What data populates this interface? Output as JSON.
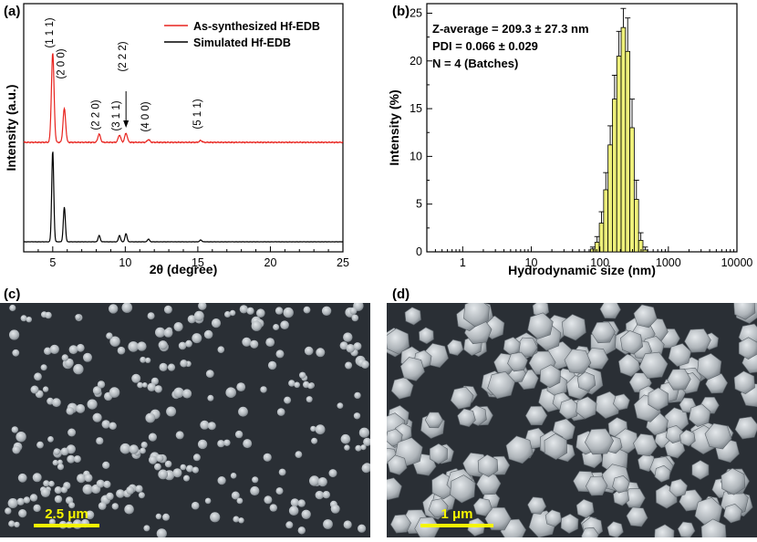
{
  "panels": {
    "a": {
      "label": "(a)"
    },
    "b": {
      "label": "(b)"
    },
    "c": {
      "label": "(c)"
    },
    "d": {
      "label": "(d)"
    }
  },
  "chart_data": [
    {
      "id": "xrd",
      "type": "line",
      "xlabel": "2θ (degree)",
      "ylabel": "Intensity (a.u.)",
      "xlim": [
        3,
        25
      ],
      "x_ticks": [
        5,
        10,
        15,
        20,
        25
      ],
      "legend": [
        {
          "label": "As-synthesized Hf-EDB",
          "color": "#e8231e"
        },
        {
          "label": "Simulated Hf-EDB",
          "color": "#000000"
        }
      ],
      "peaks": [
        {
          "x": 5.0,
          "label": "(1 1 1)",
          "exp": 98,
          "sim": 100
        },
        {
          "x": 5.8,
          "label": "(2 0 0)",
          "exp": 37,
          "sim": 38
        },
        {
          "x": 8.2,
          "label": "(2 2 0)",
          "exp": 9,
          "sim": 7
        },
        {
          "x": 9.6,
          "label": "(3 1 1)",
          "exp": 8,
          "sim": 7
        },
        {
          "x": 10.05,
          "label": "(2 2 2)",
          "exp": 10,
          "sim": 9
        },
        {
          "x": 11.6,
          "label": "(4 0 0)",
          "exp": 3,
          "sim": 3
        },
        {
          "x": 15.2,
          "label": "(5 1 1)",
          "exp": 2,
          "sim": 2
        }
      ]
    },
    {
      "id": "dls",
      "type": "bar",
      "xscale": "log",
      "xlabel": "Hydrodynamic size (nm)",
      "ylabel": "Intensity (%)",
      "xlim": [
        0.3,
        10000
      ],
      "ylim": [
        0,
        26
      ],
      "x_tick_labels": [
        "1",
        "10",
        "100",
        "1000",
        "10000"
      ],
      "y_tick_labels": [
        "0",
        "5",
        "10",
        "15",
        "20",
        "25"
      ],
      "bar_color": "#eef07a",
      "stats": [
        "Z-average = 209.3 ± 27.3 nm",
        "PDI = 0.066 ± 0.029",
        "N = 4 (Batches)"
      ],
      "sizes_nm": [
        78.8,
        91.3,
        105.7,
        122.4,
        141.8,
        164.2,
        190.1,
        220.2,
        255.0,
        295.3,
        342.0,
        396.1,
        458.7
      ],
      "values": [
        0.3,
        1.0,
        3.0,
        6.5,
        11.2,
        16.0,
        20.5,
        23.5,
        21.0,
        13.0,
        5.5,
        1.2,
        0.2
      ],
      "errors": [
        0.2,
        0.6,
        1.2,
        1.8,
        2.0,
        2.5,
        2.6,
        2.0,
        3.5,
        3.0,
        2.0,
        0.8,
        0.3
      ]
    }
  ],
  "sem": {
    "c": {
      "scale_label": "2.5 μm"
    },
    "d": {
      "scale_label": "1 μm"
    }
  },
  "colors": {
    "sem_bg": "#2a2f35",
    "particle": "#b9bfc4",
    "scale_bar": "#f5f500"
  }
}
